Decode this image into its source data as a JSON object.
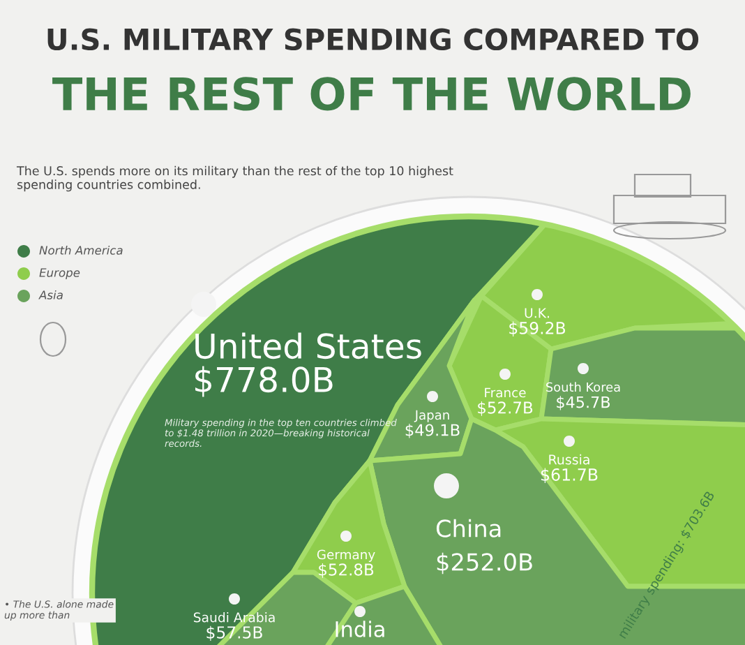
{
  "chart_data": {
    "type": "other",
    "title": "U.S. MILITARY SPENDING COMPARED TO\nTHE REST OF THE WORLD",
    "subtitle": "The U.S. spends more on its military than the rest of the top 10 highest spending countries combined.",
    "categories": [
      "United States",
      "U.K.",
      "France",
      "South Korea",
      "Japan",
      "Russia",
      "China",
      "Germany",
      "Saudi Arabia",
      "India"
    ],
    "series": [
      {
        "name": "North America",
        "color": "#3f7d48",
        "values": [
          778.0,
          null,
          null,
          null,
          null,
          null,
          null,
          null,
          null,
          null
        ],
        "value_labels": [
          "$778.0B",
          null,
          null,
          null,
          null,
          null,
          null,
          null,
          null,
          null
        ]
      },
      {
        "name": "Europe",
        "color": "#8fcd4c",
        "values": [
          null,
          59.2,
          52.7,
          null,
          null,
          61.7,
          null,
          52.8,
          null,
          null
        ],
        "value_labels": [
          null,
          "$59.2B",
          "$52.7B",
          null,
          null,
          "$61.7B",
          null,
          "$52.8B",
          null,
          null
        ]
      },
      {
        "name": "Asia",
        "color": "#6aa35c",
        "values": [
          null,
          null,
          null,
          45.7,
          49.1,
          null,
          252.0,
          null,
          57.5,
          null
        ],
        "value_labels": [
          null,
          null,
          null,
          "$45.7B",
          "$49.1B",
          null,
          "$252.0B",
          null,
          "$57.5B",
          null
        ]
      }
    ],
    "legend": "top left",
    "annotations": [
      "Military spending in the top ten countries climbed to $1.48 trillion in 2020—breaking historical records.",
      "• The U.S. alone made up more than",
      "military spending: $703.6B"
    ]
  }
}
